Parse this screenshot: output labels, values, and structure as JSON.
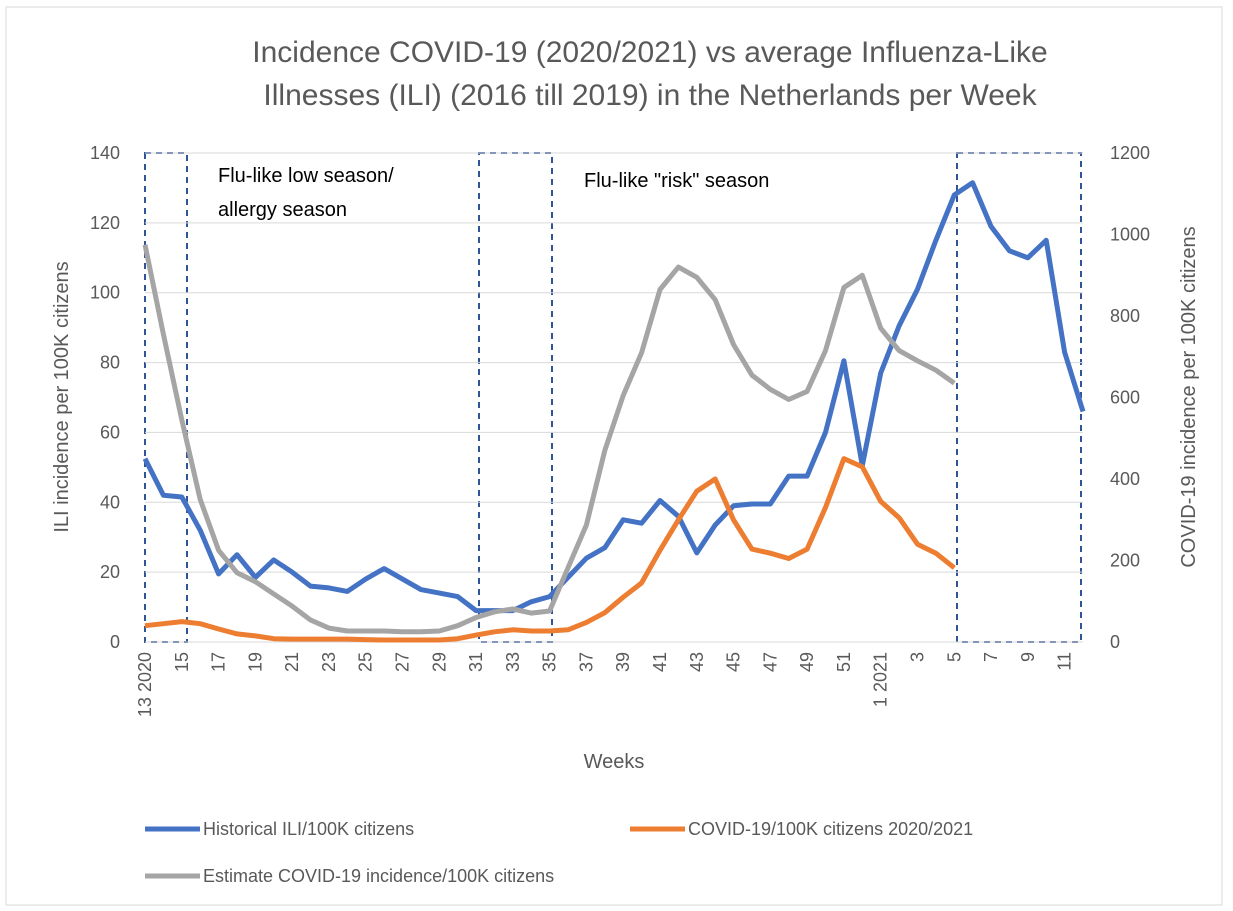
{
  "chart_data": {
    "type": "line",
    "title": [
      "Incidence COVID-19 (2020/2021) vs average Influenza-Like",
      "Illnesses (ILI) (2016 till 2019) in the Netherlands per Week"
    ],
    "x_label": "Weeks",
    "y_label": "ILI incidence per 100K citizens",
    "y2_label": "COVID-19 incidence per 100K citizens",
    "categories": [
      "13 2020",
      null,
      "15",
      null,
      "17",
      null,
      "19",
      null,
      "21",
      null,
      "23",
      null,
      "25",
      null,
      "27",
      null,
      "29",
      null,
      "31",
      null,
      "33",
      null,
      "35",
      null,
      "37",
      null,
      "39",
      null,
      "41",
      null,
      "43",
      null,
      "45",
      null,
      "47",
      null,
      "49",
      null,
      "51",
      null,
      "1 2021",
      null,
      "3",
      null,
      "5",
      null,
      "7",
      null,
      "9",
      null,
      "11",
      null
    ],
    "ylim": [
      0,
      140
    ],
    "yticks": [
      0,
      20,
      40,
      60,
      80,
      100,
      120,
      140
    ],
    "y2lim": [
      0,
      1200
    ],
    "y2ticks": [
      0,
      200,
      400,
      600,
      800,
      1000,
      1200
    ],
    "grid": true,
    "series": [
      {
        "name": "Historical ILI/100K citizens",
        "color": "#4472c4",
        "values": [
          52.5,
          42,
          41.5,
          32,
          19.5,
          25,
          18.5,
          23.5,
          20,
          16,
          15.5,
          14.5,
          18,
          21,
          18,
          15,
          14,
          13,
          9,
          9,
          9,
          11.5,
          13,
          18.5,
          24,
          27,
          35,
          34,
          40.5,
          36,
          25.5,
          33.5,
          39,
          39.5,
          39.5,
          47.5,
          47.5,
          60,
          80.5,
          50.5,
          77,
          90.5,
          101,
          115,
          128,
          131.5,
          119,
          112,
          110,
          115,
          83,
          66
        ]
      },
      {
        "name": "COVID-19/100K citizens 2020/2021",
        "color": "#ed7d31",
        "axis": "y2",
        "values": [
          40,
          45,
          50,
          45,
          32,
          20,
          15,
          8,
          7,
          7,
          7,
          7,
          6,
          5,
          5,
          5,
          5,
          8,
          17,
          25,
          30,
          27,
          27,
          30,
          48,
          72,
          110,
          145,
          225,
          300,
          370,
          400,
          300,
          228,
          218,
          205,
          228,
          330,
          450,
          430,
          345,
          305,
          240,
          218,
          182,
          null,
          null,
          null,
          null,
          null,
          null,
          null
        ]
      },
      {
        "name": "Estimate COVID-19 incidence/100K citizens",
        "color": "#a5a5a5",
        "axis": "y2",
        "values": [
          975,
          755,
          545,
          350,
          225,
          170,
          148,
          118,
          88,
          54,
          34,
          27,
          27,
          27,
          25,
          25,
          27,
          40,
          60,
          74,
          81,
          71,
          76,
          182,
          287,
          470,
          605,
          710,
          865,
          920,
          895,
          840,
          730,
          655,
          620,
          595,
          615,
          715,
          870,
          900,
          770,
          715,
          690,
          667,
          635,
          null,
          null,
          null,
          null,
          null,
          null,
          null
        ]
      }
    ],
    "annotations": [
      "Flu-like low season/",
      "allergy season",
      "Flu-like \"risk\" season"
    ]
  }
}
